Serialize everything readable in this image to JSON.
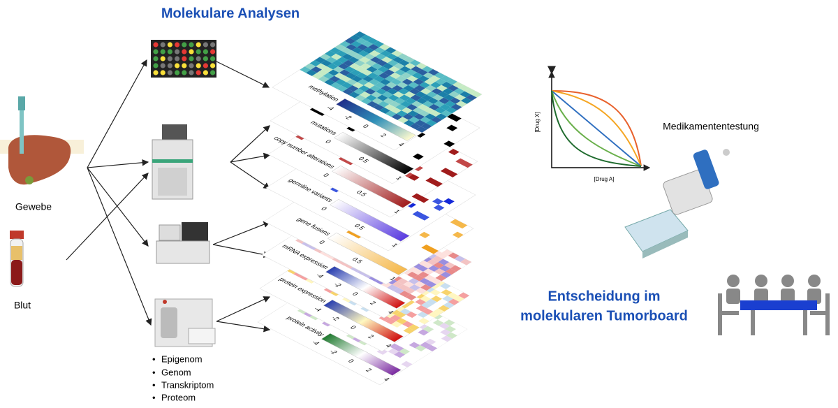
{
  "title": "Molekulare Analysen",
  "samples": [
    {
      "label": "Gewebe"
    },
    {
      "label": "Blut"
    }
  ],
  "omics_list": [
    "Epigenom",
    "Genom",
    "Transkriptom",
    "Proteom"
  ],
  "layers": [
    {
      "label": "methylation",
      "ticks": [
        -4,
        -2,
        0,
        2,
        4
      ]
    },
    {
      "label": "mutations",
      "ticks": [
        0,
        0.5,
        1
      ]
    },
    {
      "label": "copy number alterations",
      "ticks": [
        0,
        0.5,
        1
      ]
    },
    {
      "label": "germline variants",
      "ticks": [
        0,
        0.5,
        1
      ]
    },
    {
      "label": "gene fusions",
      "ticks": [
        0,
        0.5,
        1
      ]
    },
    {
      "label": "mRNA expression",
      "ticks": [
        -4,
        -2,
        0,
        2,
        4
      ]
    },
    {
      "label": "protein expression",
      "ticks": [
        -4,
        -2,
        0,
        2,
        4
      ]
    },
    {
      "label": "protein activity",
      "ticks": [
        -4,
        -2,
        0,
        2,
        4
      ]
    }
  ],
  "drug_chart": {
    "title": "Medikamententestung",
    "x_label": "[Drug A]",
    "y_label": "[Drug X]"
  },
  "tumorboard": {
    "lines": [
      "Entscheidung im",
      "molekularen Tumorboard"
    ]
  }
}
